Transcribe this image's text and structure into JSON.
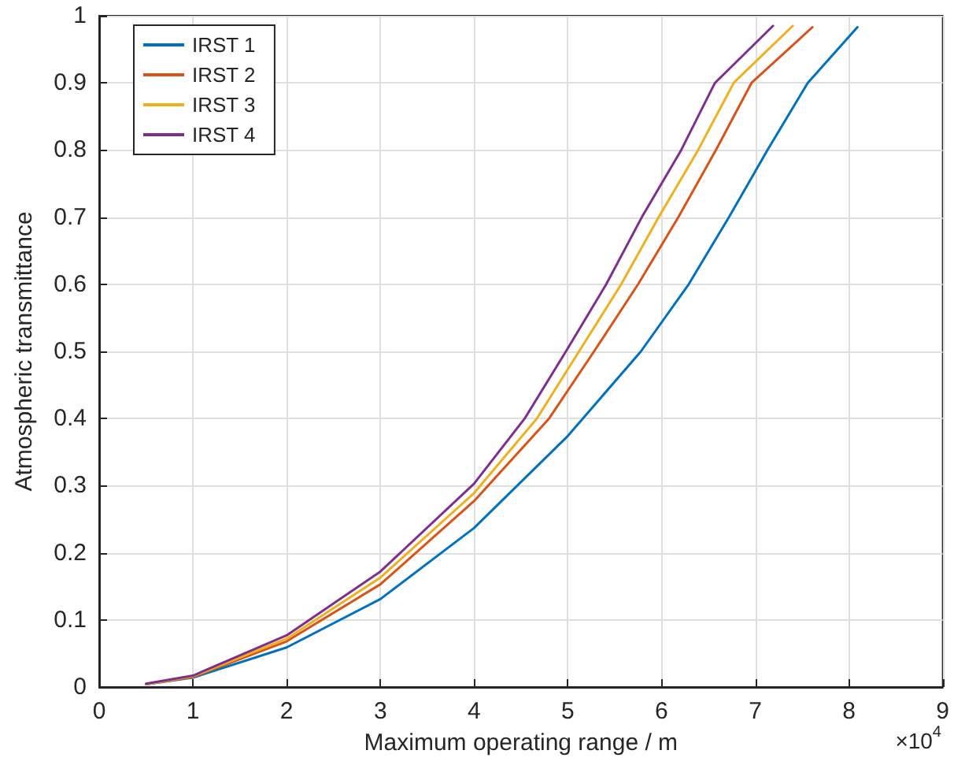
{
  "chart_data": {
    "type": "line",
    "xlabel": "Maximum operating range / m",
    "ylabel": "Atmospheric transmittance",
    "annotations": [
      "×10$^{4}$"
    ],
    "series": [
      {
        "name": "IRST 1",
        "color": "#0072bd",
        "x": [
          0.5,
          1,
          2,
          3,
          4,
          5,
          5.78,
          6.29,
          6.72,
          7.13,
          7.56,
          8.09
        ],
        "values": [
          0.004,
          0.014,
          0.059,
          0.131,
          0.237,
          0.374,
          0.5,
          0.6,
          0.7,
          0.8,
          0.9,
          0.983
        ]
      },
      {
        "name": "IRST 2",
        "color": "#d95319",
        "x": [
          0.5,
          1,
          2,
          3,
          4,
          4.8,
          5.28,
          5.75,
          6.18,
          6.58,
          6.96,
          7.61
        ],
        "values": [
          0.004,
          0.015,
          0.068,
          0.153,
          0.277,
          0.4,
          0.5,
          0.6,
          0.7,
          0.8,
          0.9,
          0.983
        ]
      },
      {
        "name": "IRST 3",
        "color": "#edb120",
        "x": [
          0.5,
          1,
          2,
          3,
          4,
          4.67,
          5.12,
          5.57,
          5.97,
          6.39,
          6.77,
          7.4
        ],
        "values": [
          0.004,
          0.016,
          0.072,
          0.163,
          0.289,
          0.4,
          0.5,
          0.6,
          0.7,
          0.8,
          0.9,
          0.985
        ]
      },
      {
        "name": "IRST 4",
        "color": "#7e2f8e",
        "x": [
          0.5,
          1,
          2,
          3,
          4,
          4.54,
          4.98,
          5.41,
          5.79,
          6.21,
          6.57,
          7.19
        ],
        "values": [
          0.005,
          0.017,
          0.077,
          0.172,
          0.303,
          0.4,
          0.5,
          0.6,
          0.7,
          0.8,
          0.9,
          0.985
        ]
      }
    ],
    "xlim": [
      0,
      9
    ],
    "xticks": [
      0,
      1,
      2,
      3,
      4,
      5,
      6,
      7,
      8,
      9
    ],
    "ylim": [
      0,
      1
    ],
    "yticks": [
      0,
      0.1,
      0.2,
      0.3,
      0.4,
      0.5,
      0.6,
      0.7,
      0.8,
      0.9,
      1
    ],
    "grid": true,
    "legend": "top left",
    "marker": "none",
    "line_style": "solid"
  }
}
